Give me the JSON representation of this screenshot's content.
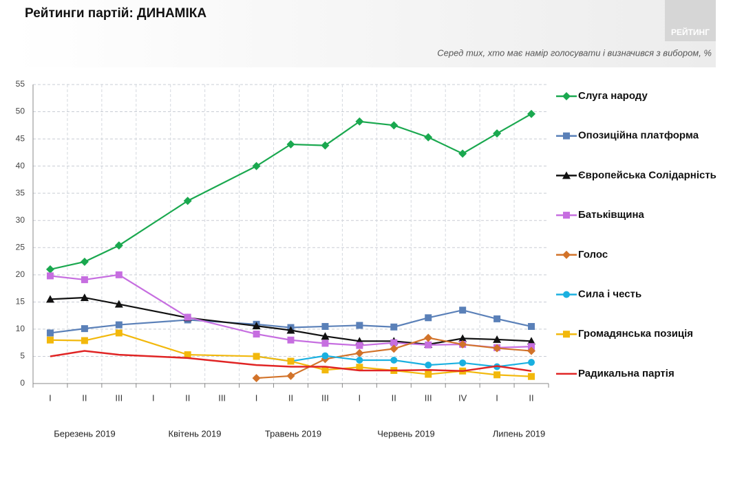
{
  "header": {
    "logo": "РЕЙТИНГ"
  },
  "chart_data": {
    "type": "line",
    "title": "Рейтинги партій: ДИНАМІКА",
    "subtitle": "Серед тих, хто має намір голосувати і визначився з вибором, %",
    "categories": [
      "I",
      "II",
      "III",
      "I",
      "II",
      "III",
      "I",
      "II",
      "III",
      "I",
      "II",
      "III",
      "IV",
      "I",
      "II"
    ],
    "month_labels": [
      "Березень 2019",
      "Квітень 2019",
      "Травень 2019",
      "Червень 2019",
      "Липень 2019"
    ],
    "ylim": [
      0,
      55
    ],
    "yticks": [
      0,
      5,
      10,
      15,
      20,
      25,
      30,
      35,
      40,
      45,
      50,
      55
    ],
    "grid": true,
    "legend": "right",
    "series": [
      {
        "name": "Слуга народу",
        "color": "#1aa84f",
        "marker": "diamond",
        "values": [
          21,
          22.4,
          25.4,
          null,
          33.6,
          null,
          40,
          44,
          43.8,
          48.2,
          47.5,
          45.3,
          42.3,
          46,
          49.6
        ]
      },
      {
        "name": "Опозиційна платформа",
        "color": "#5a80b8",
        "marker": "square",
        "values": [
          9.3,
          10.1,
          10.8,
          null,
          11.7,
          null,
          10.9,
          10.3,
          10.5,
          10.7,
          10.4,
          12.1,
          13.5,
          11.9,
          10.5
        ]
      },
      {
        "name": "Європейська Солідарність",
        "color": "#111111",
        "marker": "triangle",
        "values": [
          15.5,
          15.8,
          14.6,
          null,
          12.1,
          null,
          10.6,
          9.8,
          8.7,
          7.8,
          7.8,
          7.2,
          8.3,
          8.1,
          7.8
        ]
      },
      {
        "name": "Батьківщина",
        "color": "#c66ee0",
        "marker": "square",
        "values": [
          19.8,
          19.1,
          20,
          null,
          12.2,
          null,
          9.1,
          8,
          7.4,
          7,
          7.5,
          7.1,
          7.2,
          6.6,
          6.8
        ]
      },
      {
        "name": "Голос",
        "color": "#d2732a",
        "marker": "diamond",
        "values": [
          null,
          null,
          null,
          null,
          null,
          null,
          1,
          1.4,
          4.5,
          5.6,
          6.4,
          8.4,
          7.2,
          6.5,
          6
        ]
      },
      {
        "name": "Сила і честь",
        "color": "#1ab0e0",
        "marker": "circle",
        "values": [
          null,
          null,
          null,
          null,
          null,
          null,
          5,
          4.1,
          5.1,
          4.3,
          4.3,
          3.4,
          3.8,
          3.1,
          3.9
        ]
      },
      {
        "name": "Громадянська позиція",
        "color": "#f2b80c",
        "marker": "square",
        "values": [
          8,
          7.9,
          9.3,
          null,
          5.3,
          null,
          5,
          4.1,
          2.5,
          3,
          2.4,
          1.7,
          2.3,
          1.6,
          1.3
        ]
      },
      {
        "name": "Радикальна партія",
        "color": "#e02424",
        "marker": "none",
        "values": [
          5,
          6,
          5.3,
          null,
          4.7,
          null,
          3.4,
          3.1,
          3.1,
          2.4,
          2.4,
          2.5,
          2.3,
          3.2,
          2.3
        ]
      }
    ]
  }
}
